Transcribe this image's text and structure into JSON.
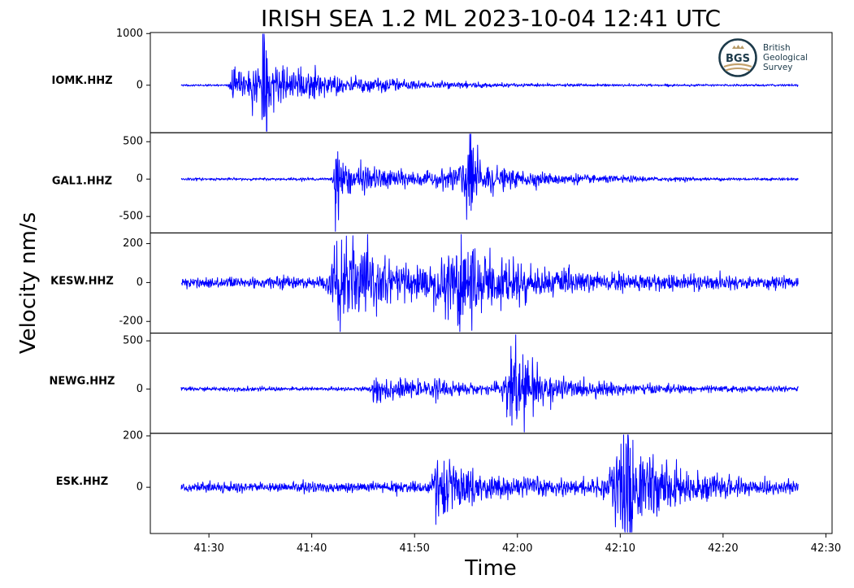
{
  "chart_data": {
    "type": "line",
    "title": "IRISH SEA 1.2 ML   2023-10-04 12:41 UTC",
    "xlabel": "Time",
    "ylabel": "Velocity nm/s",
    "x_ticks": [
      "41:30",
      "41:40",
      "41:50",
      "42:00",
      "42:10",
      "42:20",
      "42:30"
    ],
    "x_tick_seconds": [
      30,
      40,
      50,
      60,
      70,
      80,
      90
    ],
    "xlim_seconds": [
      24.3,
      90.6
    ],
    "trace_start_seconds": 27.3,
    "trace_end_seconds": 87.3,
    "line_color": "#0000ff",
    "logo": {
      "abbr": "BGS",
      "lines": [
        "British",
        "Geological",
        "Survey"
      ]
    },
    "channels": [
      {
        "name": "IOMK.HHZ",
        "ylim": [
          -920,
          1020
        ],
        "yticks": [
          0,
          1000
        ],
        "ytick_labels": [
          "0",
          "1000"
        ],
        "noise": 12,
        "events": [
          {
            "t": 32.2,
            "amp": 250,
            "decay": 1.2,
            "rise": 0.15
          },
          {
            "t": 34.2,
            "amp": 260,
            "decay": 3.0,
            "rise": 0.5
          },
          {
            "t": 35.3,
            "amp": 900,
            "decay": 0.6,
            "rise": 0.15
          },
          {
            "t": 36.0,
            "amp": 190,
            "decay": 10.0,
            "rise": 0.8
          }
        ]
      },
      {
        "name": "GAL1.HHZ",
        "ylim": [
          -720,
          620
        ],
        "yticks": [
          -500,
          0,
          500
        ],
        "ytick_labels": [
          "-500",
          "0",
          "500"
        ],
        "noise": 10,
        "events": [
          {
            "t": 42.3,
            "amp": 450,
            "decay": 0.4,
            "rise": 0.1
          },
          {
            "t": 42.6,
            "amp": 170,
            "decay": 3.5,
            "rise": 0.3
          },
          {
            "t": 45.0,
            "amp": 75,
            "decay": 12.0,
            "rise": 1.0
          },
          {
            "t": 55.0,
            "amp": 260,
            "decay": 2.0,
            "rise": 1.5
          },
          {
            "t": 55.4,
            "amp": 600,
            "decay": 0.4,
            "rise": 0.2
          },
          {
            "t": 56.5,
            "amp": 90,
            "decay": 9.0,
            "rise": 1.0
          }
        ]
      },
      {
        "name": "KESW.HHZ",
        "ylim": [
          -260,
          255
        ],
        "yticks": [
          -200,
          0,
          200
        ],
        "ytick_labels": [
          "-200",
          "0",
          "200"
        ],
        "noise": 18,
        "events": [
          {
            "t": 42.6,
            "amp": 160,
            "decay": 3.5,
            "rise": 0.7
          },
          {
            "t": 44.5,
            "amp": 55,
            "decay": 14.0,
            "rise": 1.0
          },
          {
            "t": 54.5,
            "amp": 190,
            "decay": 3.5,
            "rise": 2.0
          },
          {
            "t": 58.0,
            "amp": 40,
            "decay": 14.0,
            "rise": 1.0
          }
        ]
      },
      {
        "name": "NEWG.HHZ",
        "ylim": [
          -460,
          580
        ],
        "yticks": [
          0,
          500
        ],
        "ytick_labels": [
          "0",
          "500"
        ],
        "noise": 12,
        "events": [
          {
            "t": 46.0,
            "amp": 100,
            "decay": 4.0,
            "rise": 0.2
          },
          {
            "t": 52.0,
            "amp": 55,
            "decay": 6.0,
            "rise": 2.0
          },
          {
            "t": 59.5,
            "amp": 420,
            "decay": 1.8,
            "rise": 0.6
          },
          {
            "t": 61.0,
            "amp": 70,
            "decay": 12.0,
            "rise": 1.0
          }
        ]
      },
      {
        "name": "ESK.HHZ",
        "ylim": [
          -180,
          210
        ],
        "yticks": [
          0,
          200
        ],
        "ytick_labels": [
          "0",
          "200"
        ],
        "noise": 11,
        "events": [
          {
            "t": 52.0,
            "amp": 75,
            "decay": 3.0,
            "rise": 0.3
          },
          {
            "t": 54.0,
            "amp": 30,
            "decay": 14.0,
            "rise": 1.5
          },
          {
            "t": 70.2,
            "amp": 175,
            "decay": 2.8,
            "rise": 1.0
          },
          {
            "t": 73.0,
            "amp": 35,
            "decay": 12.0,
            "rise": 1.0
          }
        ]
      }
    ]
  }
}
